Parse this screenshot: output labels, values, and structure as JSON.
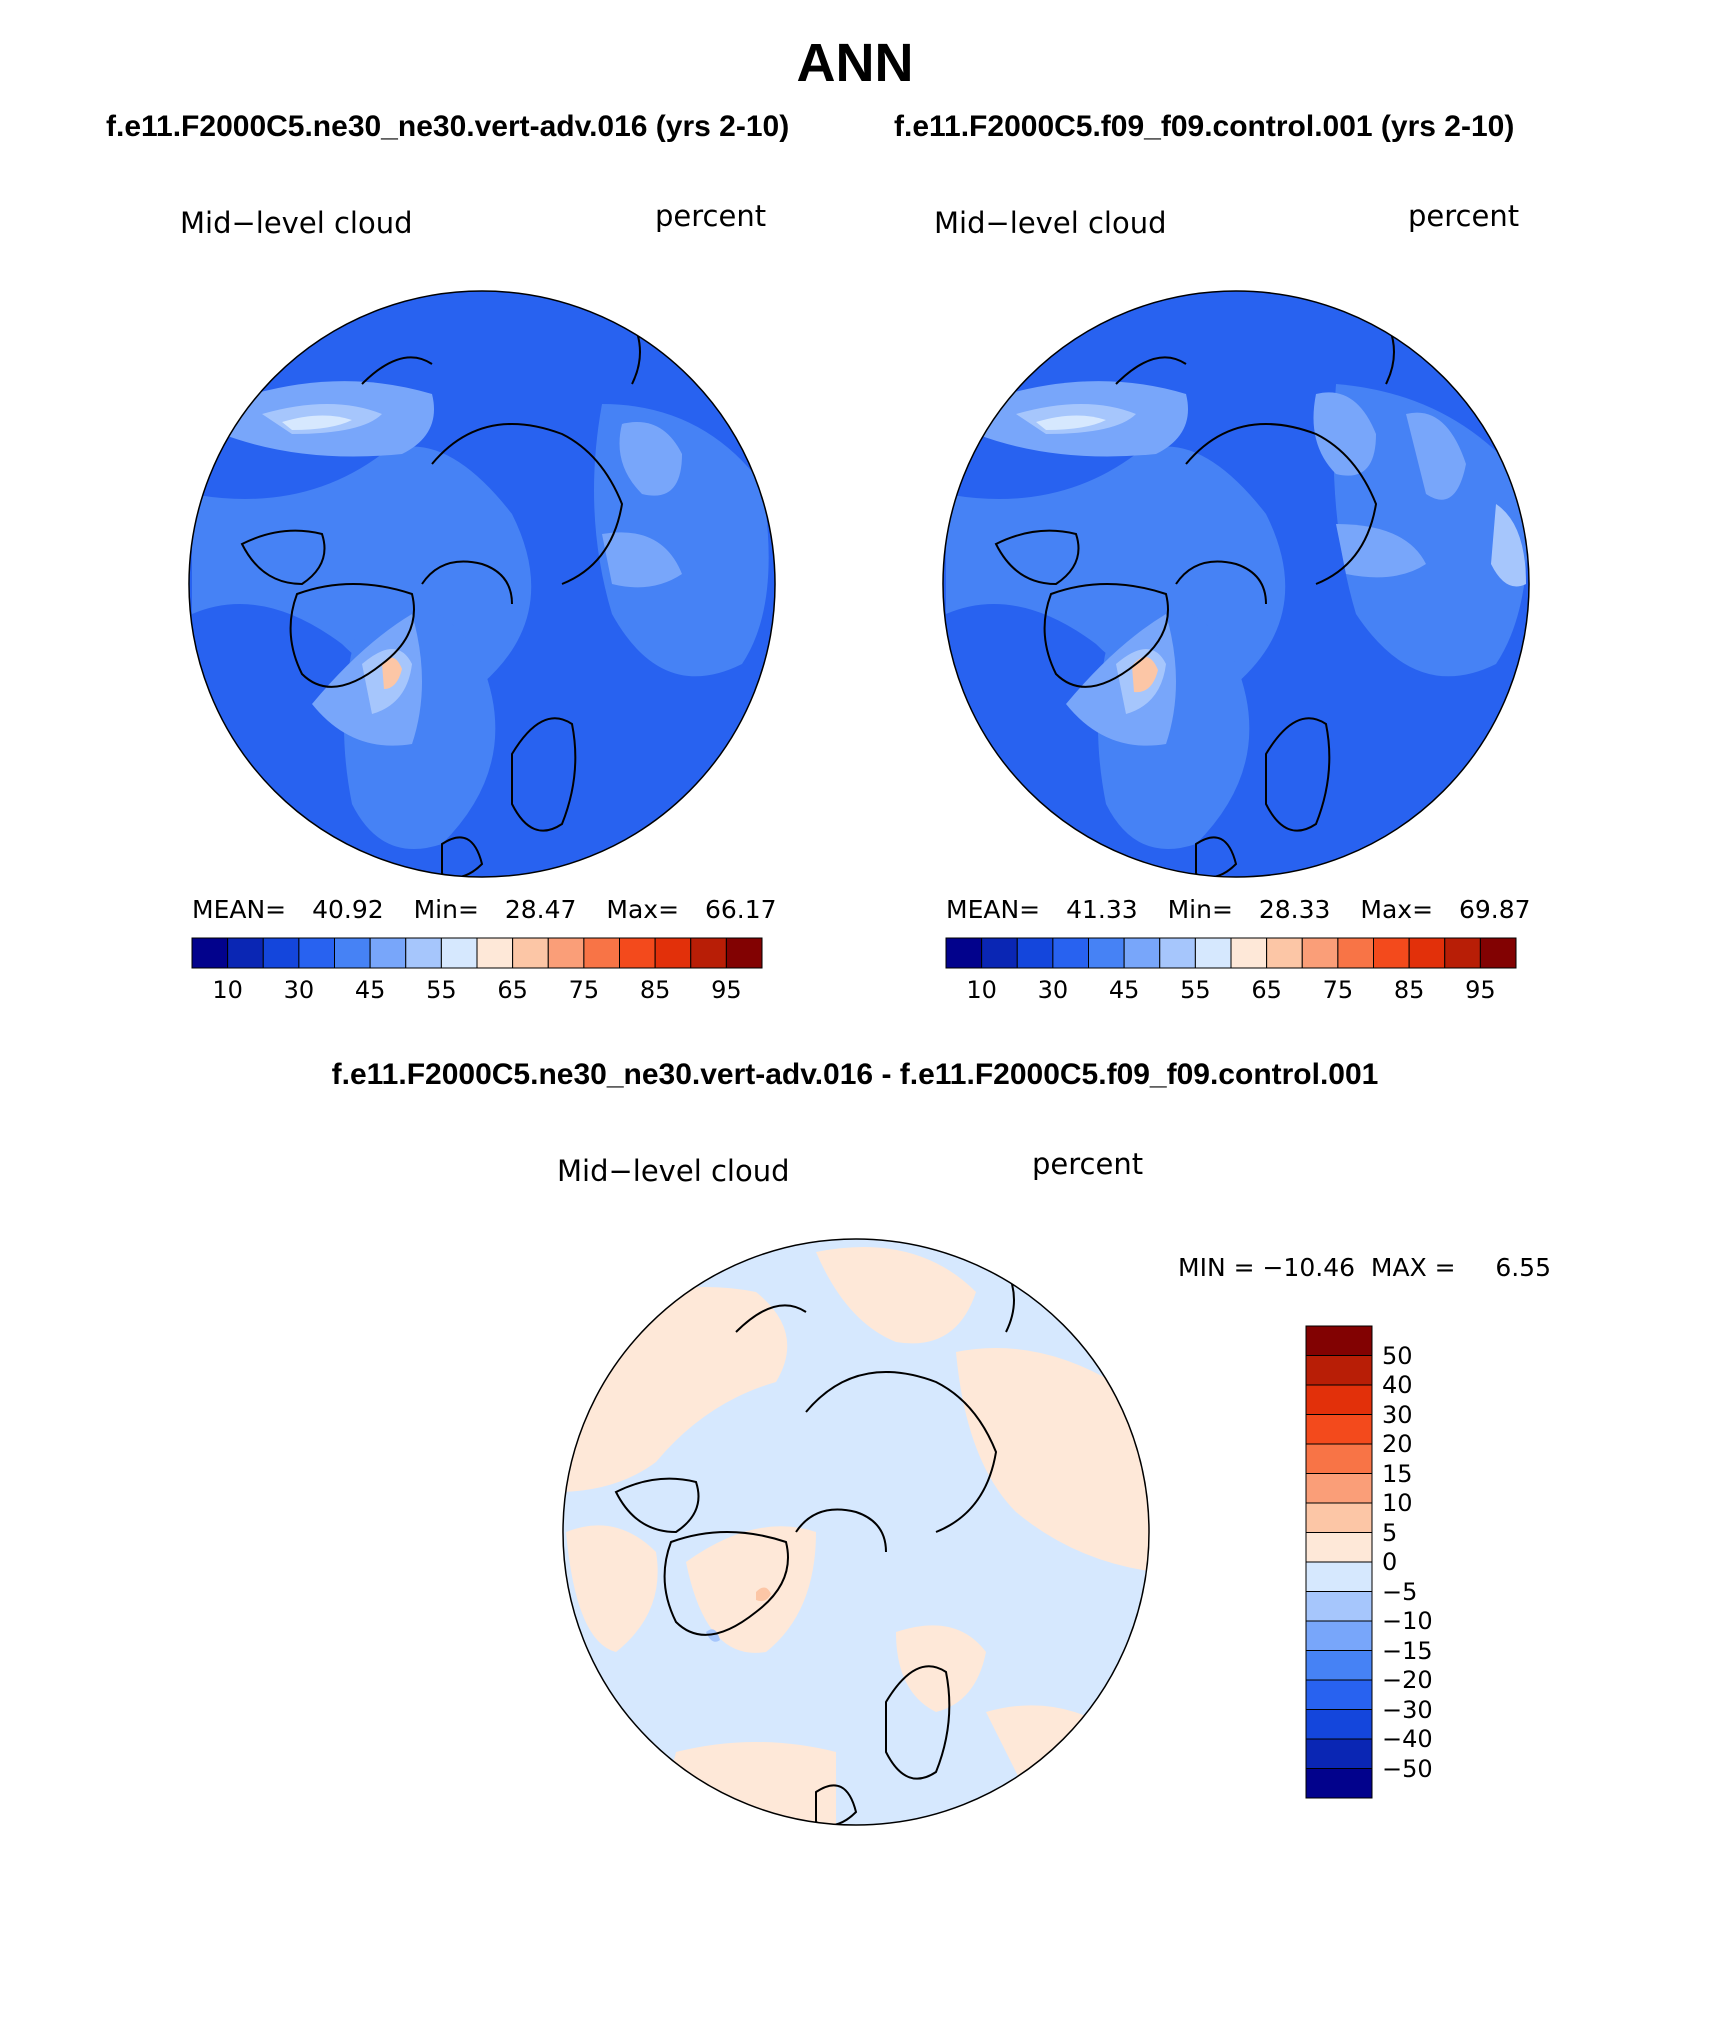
{
  "page_title": "ANN",
  "panels": [
    {
      "case": "f.e11.F2000C5.ne30_ne30.vert-adv.016 (yrs 2-10)",
      "variable": "Mid−level cloud",
      "units": "percent",
      "stats": {
        "mean_label": "MEAN=",
        "mean": "40.92",
        "min_label": "Min=",
        "min": "28.47",
        "max_label": "Max=",
        "max": "66.17"
      }
    },
    {
      "case": "f.e11.F2000C5.f09_f09.control.001 (yrs 2-10)",
      "variable": "Mid−level cloud",
      "units": "percent",
      "stats": {
        "mean_label": "MEAN=",
        "mean": "41.33",
        "min_label": "Min=",
        "min": "28.33",
        "max_label": "Max=",
        "max": "69.87"
      }
    }
  ],
  "colorbar": {
    "tick_labels": [
      "10",
      "30",
      "45",
      "55",
      "65",
      "75",
      "85",
      "95"
    ],
    "colors": [
      "#02028c",
      "#0a26b4",
      "#1446dc",
      "#2862f0",
      "#4682f5",
      "#78a6fa",
      "#a6c6fc",
      "#d6e8fe",
      "#fee8d8",
      "#fcc6a6",
      "#fa9e78",
      "#f87446",
      "#f34a1c",
      "#e2300a",
      "#b81e06",
      "#820202"
    ]
  },
  "difference": {
    "title": "f.e11.F2000C5.ne30_ne30.vert-adv.016 - f.e11.F2000C5.f09_f09.control.001",
    "variable": "Mid−level cloud",
    "units": "percent",
    "minmax": "MIN = −10.46  MAX =     6.55",
    "legend_labels": [
      "50",
      "40",
      "30",
      "20",
      "15",
      "10",
      "5",
      "0",
      "−5",
      "−10",
      "−15",
      "−20",
      "−30",
      "−40",
      "−50"
    ],
    "legend_colors": [
      "#820202",
      "#b81e06",
      "#e2300a",
      "#f34a1c",
      "#f87446",
      "#fa9e78",
      "#fcc6a6",
      "#fee8d8",
      "#d6e8fe",
      "#a6c6fc",
      "#78a6fa",
      "#4682f5",
      "#2862f0",
      "#1446dc",
      "#0a26b4",
      "#02028c"
    ]
  }
}
